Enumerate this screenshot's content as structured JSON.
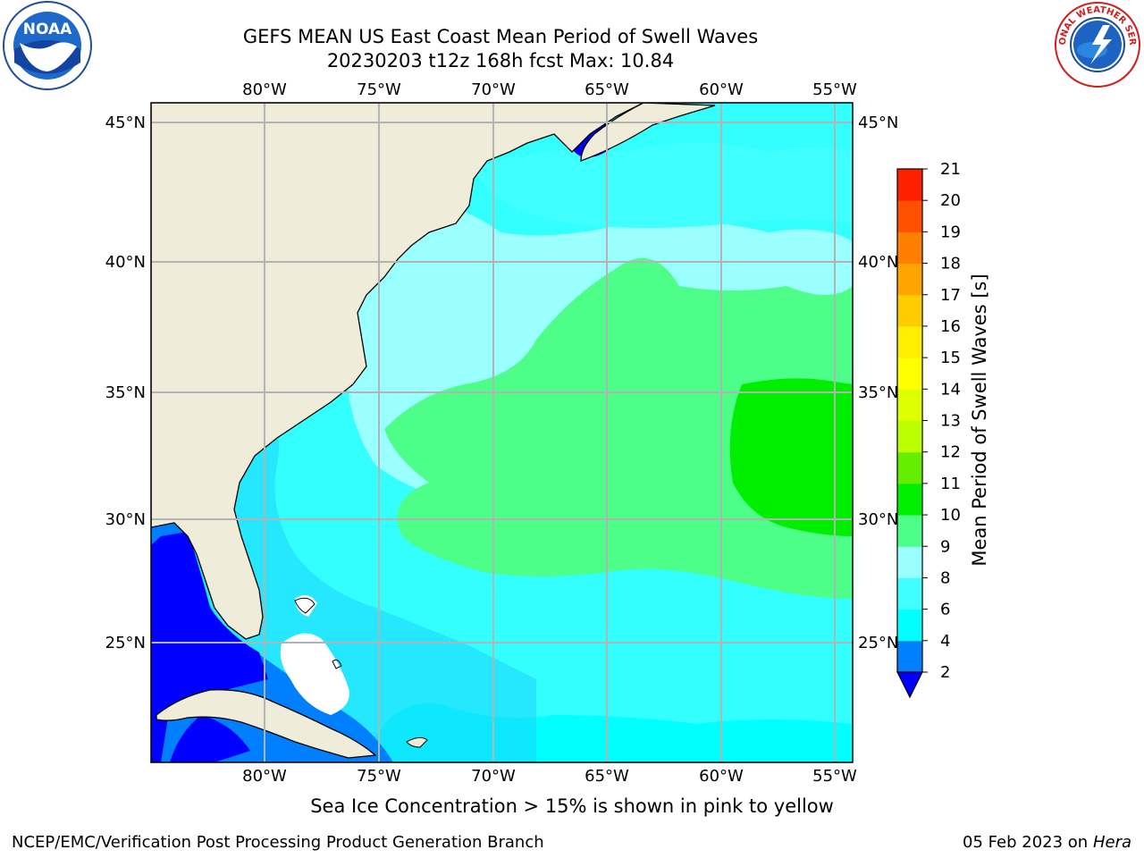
{
  "title": {
    "line1": "GEFS MEAN US East Coast Mean Period of Swell Waves",
    "line2": "20230203 t12z 168h fcst   Max: 10.84"
  },
  "map": {
    "lon_labels": [
      "80°W",
      "75°W",
      "70°W",
      "65°W",
      "60°W",
      "55°W"
    ],
    "lat_labels": [
      "45°N",
      "40°N",
      "35°N",
      "30°N",
      "25°N"
    ],
    "colors": {
      "land": "#efedd9",
      "coast": "#000000",
      "grid": "#b3b3b3",
      "ocean_base": "#33ffff"
    }
  },
  "colorbar": {
    "title": "Mean Period of Swell Waves [s]",
    "ticks": [
      "2",
      "4",
      "6",
      "8",
      "9",
      "10",
      "11",
      "12",
      "13",
      "14",
      "15",
      "16",
      "17",
      "18",
      "19",
      "20",
      "21"
    ],
    "colors": [
      "#0000ff",
      "#0080ff",
      "#00ffff",
      "#40ffff",
      "#99ffff",
      "#4dff88",
      "#00ee00",
      "#66ee00",
      "#bbff00",
      "#ddff00",
      "#ffff00",
      "#ffee00",
      "#ffcc00",
      "#ffa500",
      "#ff8000",
      "#ff5000",
      "#ff2000",
      "#ff0000"
    ]
  },
  "caption": "Sea Ice Concentration > 15% is shown in pink to yellow",
  "footer": {
    "left": "NCEP/EMC/Verification Post Processing Product Generation Branch",
    "right_date": "05 Feb 2023 on",
    "right_machine": "Hera"
  },
  "logos": {
    "noaa": "NOAA",
    "nws_ring": "NATIONAL WEATHER SERVICE"
  }
}
